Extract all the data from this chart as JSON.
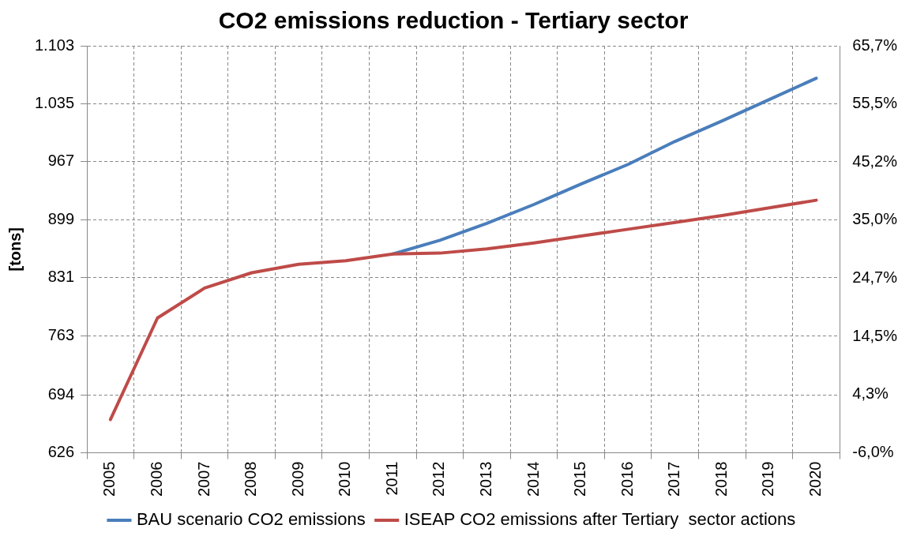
{
  "chart_data": {
    "type": "line",
    "title": "CO2 emissions reduction - Tertiary sector",
    "ylabel": "[tons]",
    "categories": [
      "2005",
      "2006",
      "2007",
      "2008",
      "2009",
      "2010",
      "2011",
      "2012",
      "2013",
      "2014",
      "2015",
      "2016",
      "2017",
      "2018",
      "2019",
      "2020"
    ],
    "series": [
      {
        "name": "BAU scenario CO2 emissions",
        "color": "#4a7ebb",
        "values": [
          null,
          null,
          null,
          null,
          null,
          null,
          859,
          875,
          895,
          917,
          941,
          964,
          991,
          1015,
          1040,
          1065
        ]
      },
      {
        "name": "ISEAP CO2 emissions after Tertiary  sector actions",
        "color": "#be4b48",
        "values": [
          665,
          784,
          819,
          837,
          847,
          851,
          859,
          860,
          865,
          872,
          880,
          888,
          896,
          904,
          913,
          922
        ]
      }
    ],
    "ylim": [
      626,
      1103
    ],
    "yticks": [
      626,
      694,
      763,
      831,
      899,
      967,
      {
        "value": 1035,
        "label": "1.035"
      },
      {
        "value": 1103,
        "label": "1.103"
      }
    ],
    "y2lim": [
      -6.0,
      65.7
    ],
    "y2ticks": [
      {
        "value": -6.0,
        "label": "-6,0%"
      },
      {
        "value": 4.3,
        "label": "4,3%"
      },
      {
        "value": 14.5,
        "label": "14,5%"
      },
      {
        "value": 24.7,
        "label": "24,7%"
      },
      {
        "value": 35.0,
        "label": "35,0%"
      },
      {
        "value": 45.2,
        "label": "45,2%"
      },
      {
        "value": 55.5,
        "label": "55,5%"
      },
      {
        "value": 65.7,
        "label": "65,7%"
      }
    ],
    "grid": true,
    "legend": "bottom",
    "marker": "none",
    "line_style": "solid"
  }
}
